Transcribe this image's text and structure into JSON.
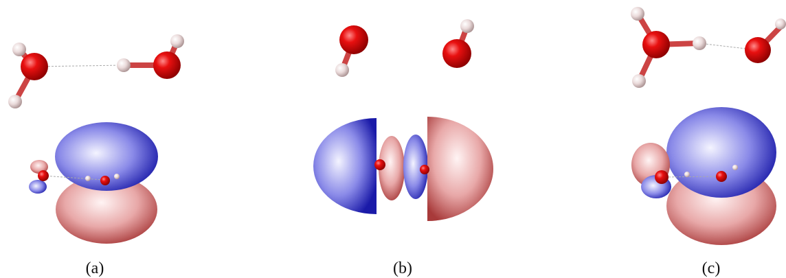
{
  "panels": [
    {
      "label": "(a)"
    },
    {
      "label": "(b)"
    },
    {
      "label": "(c)"
    }
  ]
}
